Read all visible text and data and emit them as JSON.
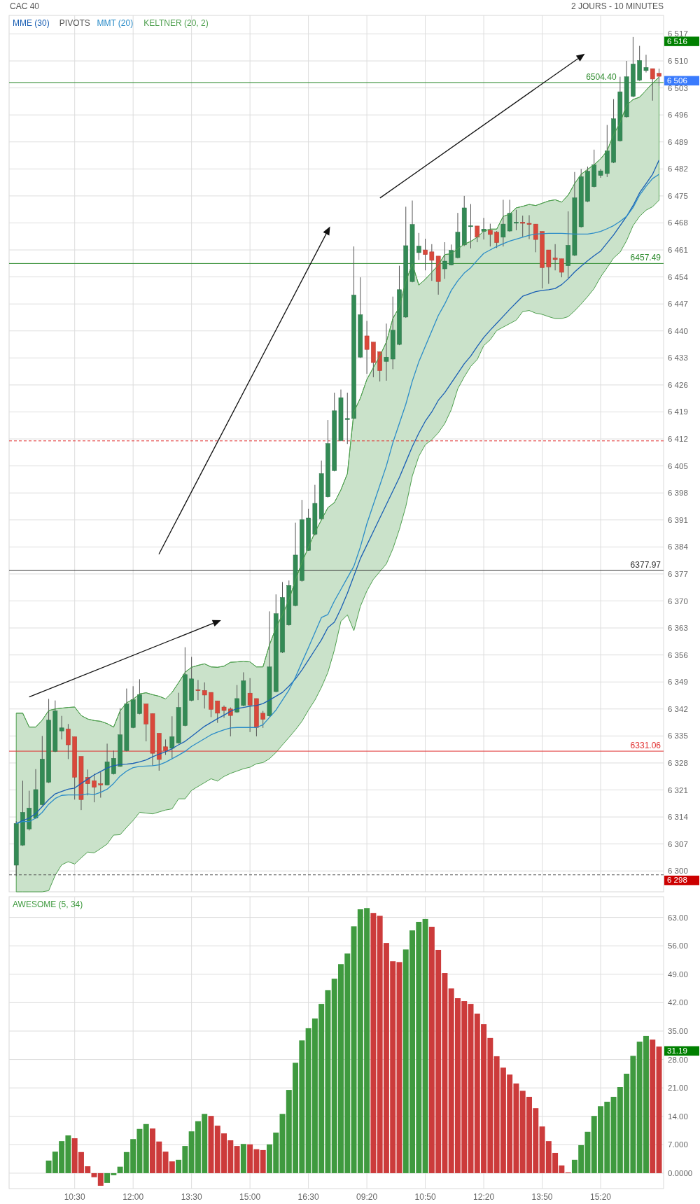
{
  "chart_data": [
    {
      "type": "candlestick",
      "title": "CAC 40",
      "subtitle": "2 JOURS - 10 MINUTES",
      "categories": [
        null,
        null,
        null,
        null,
        null,
        null,
        null,
        null,
        null,
        null,
        null,
        null,
        null,
        null,
        null,
        null,
        null,
        null,
        null,
        null,
        null,
        null,
        null,
        null,
        null,
        null,
        null,
        null,
        null,
        null,
        null,
        null,
        null,
        null,
        null,
        null,
        null,
        null,
        null,
        null,
        null,
        null,
        null,
        null,
        null,
        null,
        null,
        null,
        null,
        null,
        null,
        null,
        null,
        null,
        null,
        null,
        null,
        null,
        null,
        null,
        null,
        null,
        null,
        null,
        null,
        null,
        null,
        null,
        null,
        null,
        null,
        null,
        null,
        null,
        null,
        null,
        null,
        null,
        null,
        null,
        null,
        null,
        null,
        null,
        null,
        null,
        null,
        null,
        null,
        null,
        null,
        null,
        null,
        null,
        null,
        null,
        null,
        null,
        null,
        null
      ],
      "ohlc": [
        [
          6301.5,
          6312.9,
          6298.7,
          6312.3
        ],
        [
          6306.7,
          6323.4,
          6306.5,
          6315.2
        ],
        [
          6310.9,
          6320.8,
          6310.5,
          6316.3
        ],
        [
          6313.7,
          6326.4,
          6313.5,
          6321.1
        ],
        [
          6317.2,
          6335.0,
          6317.0,
          6329.0
        ],
        [
          6323.0,
          6344.6,
          6322.8,
          6339.1
        ],
        [
          6331.0,
          6344.2,
          6330.8,
          6341.5
        ],
        [
          6336.3,
          6340.2,
          6334.1,
          6337.1
        ],
        [
          6336.8,
          6338.1,
          6329.0,
          6332.7
        ],
        [
          6334.8,
          6334.8,
          6318.5,
          6324.3
        ],
        [
          6329.7,
          6329.7,
          6315.8,
          6318.5
        ],
        [
          6324.3,
          6326.3,
          6319.6,
          6322.6
        ],
        [
          6323.4,
          6325.2,
          6317.8,
          6321.7
        ],
        [
          6322.6,
          6325.7,
          6319.0,
          6322.3
        ],
        [
          6322.3,
          6333.0,
          6322.2,
          6328.3
        ],
        [
          6325.2,
          6331.2,
          6325.0,
          6329.2
        ],
        [
          6327.1,
          6342.2,
          6327.0,
          6335.3
        ],
        [
          6331.2,
          6347.3,
          6331.0,
          6343.3
        ],
        [
          6337.2,
          6347.9,
          6337.0,
          6344.4
        ],
        [
          6340.8,
          6349.7,
          6340.6,
          6345.7
        ],
        [
          6343.3,
          6343.3,
          6333.6,
          6338.1
        ],
        [
          6340.8,
          6340.8,
          6327.3,
          6330.5
        ],
        [
          6335.7,
          6335.7,
          6326.0,
          6328.9
        ],
        [
          6332.2,
          6334.1,
          6330.1,
          6331.2
        ],
        [
          6331.8,
          6340.1,
          6329.2,
          6334.8
        ],
        [
          6333.2,
          6346.2,
          6333.0,
          6342.4
        ],
        [
          6337.7,
          6358.0,
          6337.5,
          6350.9
        ],
        [
          6344.2,
          6355.5,
          6344.0,
          6349.8
        ],
        [
          6347.0,
          6349.5,
          6344.3,
          6346.8
        ],
        [
          6346.8,
          6348.9,
          6342.1,
          6345.6
        ],
        [
          6346.3,
          6346.3,
          6339.9,
          6341.9
        ],
        [
          6344.1,
          6344.1,
          6338.4,
          6340.9
        ],
        [
          6342.5,
          6342.9,
          6339.7,
          6341.6
        ],
        [
          6342.0,
          6342.4,
          6334.9,
          6340.3
        ],
        [
          6341.2,
          6348.2,
          6341.0,
          6344.7
        ],
        [
          6342.9,
          6351.5,
          6342.7,
          6349.3
        ],
        [
          6346.1,
          6350.0,
          6336.0,
          6343.0
        ],
        [
          6344.7,
          6344.7,
          6334.9,
          6337.2
        ],
        [
          6340.9,
          6341.5,
          6337.1,
          6339.3
        ],
        [
          6340.2,
          6367.3,
          6340.0,
          6352.9
        ],
        [
          6346.5,
          6371.7,
          6346.3,
          6366.7
        ],
        [
          6356.7,
          6374.9,
          6356.5,
          6370.9
        ],
        [
          6363.8,
          6375.3,
          6363.6,
          6374.0
        ],
        [
          6368.8,
          6390.3,
          6368.6,
          6381.9
        ],
        [
          6375.3,
          6396.2,
          6375.0,
          6391.1
        ],
        [
          6383.1,
          6393.9,
          6383.0,
          6391.5
        ],
        [
          6387.3,
          6400.1,
          6387.0,
          6395.3
        ],
        [
          6391.3,
          6406.4,
          6391.0,
          6403.0
        ],
        [
          6397.0,
          6416.9,
          6396.8,
          6410.8
        ],
        [
          6403.8,
          6424.0,
          6403.6,
          6419.3
        ],
        [
          6411.6,
          6424.8,
          6411.4,
          6422.7
        ],
        [
          6417.2,
          6424.0,
          6410.7,
          6417.3
        ],
        [
          6417.3,
          6461.9,
          6417.2,
          6449.3
        ],
        [
          6433.2,
          6453.9,
          6433.0,
          6444.2
        ],
        [
          6438.7,
          6442.6,
          6428.9,
          6435.2
        ],
        [
          6437.1,
          6437.1,
          6428.0,
          6431.8
        ],
        [
          6434.6,
          6434.6,
          6426.9,
          6429.7
        ],
        [
          6432.1,
          6441.9,
          6427.1,
          6433.2
        ],
        [
          6432.7,
          6448.9,
          6430.1,
          6440.2
        ],
        [
          6436.5,
          6456.9,
          6436.3,
          6450.7
        ],
        [
          6443.6,
          6472.2,
          6443.4,
          6462.1
        ],
        [
          6452.8,
          6473.8,
          6452.6,
          6467.6
        ],
        [
          6460.3,
          6465.4,
          6458.4,
          6462.0
        ],
        [
          6461.0,
          6463.9,
          6455.7,
          6459.8
        ],
        [
          6460.5,
          6462.5,
          6453.0,
          6458.3
        ],
        [
          6459.4,
          6459.4,
          6449.4,
          6452.8
        ],
        [
          6456.1,
          6463.0,
          6453.5,
          6458.1
        ],
        [
          6457.1,
          6462.4,
          6457.0,
          6460.9
        ],
        [
          6459.0,
          6470.6,
          6458.8,
          6465.6
        ],
        [
          6462.3,
          6475.0,
          6462.0,
          6471.9
        ],
        [
          6467.2,
          6472.9,
          6461.4,
          6467.3
        ],
        [
          6467.2,
          6467.2,
          6463.0,
          6464.3
        ],
        [
          6465.8,
          6469.3,
          6463.7,
          6466.4
        ],
        [
          6466.1,
          6467.8,
          6461.9,
          6465.0
        ],
        [
          6465.6,
          6465.9,
          6461.5,
          6462.9
        ],
        [
          6464.3,
          6474.0,
          6461.9,
          6467.7
        ],
        [
          6465.9,
          6474.0,
          6465.7,
          6470.5
        ],
        [
          6468.1,
          6471.4,
          6466.1,
          6468.2
        ],
        [
          6468.2,
          6469.9,
          6464.4,
          6467.9
        ],
        [
          6467.9,
          6470.0,
          6463.8,
          6467.6
        ],
        [
          6467.7,
          6467.7,
          6460.4,
          6463.7
        ],
        [
          6465.8,
          6465.8,
          6451.0,
          6456.4
        ],
        [
          6461.0,
          6461.0,
          6452.2,
          6456.6
        ],
        [
          6458.9,
          6462.5,
          6455.7,
          6458.5
        ],
        [
          6458.7,
          6458.7,
          6453.9,
          6455.2
        ],
        [
          6456.9,
          6471.0,
          6453.7,
          6462.2
        ],
        [
          6459.6,
          6481.2,
          6459.4,
          6474.5
        ],
        [
          6467.0,
          6482.0,
          6466.8,
          6480.0
        ],
        [
          6473.6,
          6482.6,
          6473.4,
          6481.4
        ],
        [
          6477.4,
          6487.0,
          6477.2,
          6483.1
        ],
        [
          6480.3,
          6482.0,
          6479.7,
          6481.5
        ],
        [
          6480.8,
          6493.4,
          6479.9,
          6486.7
        ],
        [
          6483.7,
          6500.1,
          6483.5,
          6495.0
        ],
        [
          6489.3,
          6505.9,
          6489.1,
          6502.0
        ],
        [
          6495.5,
          6510.0,
          6495.3,
          6505.9
        ],
        [
          6500.8,
          6516.2,
          6500.6,
          6509.2
        ],
        [
          6505.0,
          6513.9,
          6504.8,
          6510.1
        ],
        [
          6507.5,
          6511.6,
          6507.0,
          6508.3
        ],
        [
          6508.0,
          6508.0,
          6499.7,
          6505.3
        ],
        [
          6506.8,
          6508.0,
          6503.5,
          6506.0
        ]
      ],
      "series": [
        {
          "name": "MME (30)",
          "type": "line",
          "color": "#1a5fb4",
          "values": [
            6312.3,
            6313.1,
            6313.7,
            6314.9,
            6316.7,
            6318.5,
            6320.0,
            6320.6,
            6321.2,
            6321.5,
            6322.7,
            6323.8,
            6324.9,
            6325.8,
            6326.7,
            6327.3,
            6327.6,
            6327.7,
            6327.9,
            6328.3,
            6328.8,
            6329.6,
            6330.3,
            6330.9,
            6331.7,
            6332.7,
            6333.6,
            6334.9,
            6336.2,
            6337.5,
            6338.5,
            6339.5,
            6340.4,
            6341.4,
            6342.1,
            6342.4,
            6342.7,
            6342.9,
            6343.4,
            6344.3,
            6345.3,
            6346.3,
            6347.9,
            6349.8,
            6352.1,
            6354.7,
            6357.3,
            6359.9,
            6363.1,
            6364.5,
            6368.0,
            6372.0,
            6376.5,
            6381.0,
            6384.5,
            6388.0,
            6391.5,
            6395.0,
            6398.5,
            6402.0,
            6406.0,
            6410.0,
            6413.5,
            6416.6,
            6419.0,
            6422.0,
            6424.0,
            6426.5,
            6429.0,
            6431.5,
            6433.5,
            6436.0,
            6438.3,
            6440.2,
            6442.0,
            6443.8,
            6445.6,
            6447.3,
            6449.0,
            6449.6,
            6450.2,
            6450.5,
            6450.7,
            6451.0,
            6452.0,
            6453.5,
            6455.3,
            6456.8,
            6458.2,
            6459.5,
            6460.7,
            6462.8,
            6464.9,
            6467.3,
            6469.7,
            6472.5,
            6475.8,
            6478.2,
            6480.6,
            6484.3
          ]
        },
        {
          "name": "MMT (20)",
          "type": "line",
          "color": "#2b8cc8",
          "values": [
            6312.3,
            6312.8,
            6312.8,
            6313.7,
            6315.2,
            6317.3,
            6318.8,
            6319.6,
            6319.7,
            6319.7,
            6319.7,
            6320.0,
            6319.8,
            6320.4,
            6321.2,
            6322.7,
            6324.6,
            6325.9,
            6326.8,
            6327.1,
            6327.2,
            6327.3,
            6327.5,
            6328.2,
            6329.1,
            6330.0,
            6331.0,
            6332.3,
            6333.3,
            6334.3,
            6335.3,
            6336.0,
            6336.6,
            6337.1,
            6337.2,
            6337.2,
            6337.2,
            6337.2,
            6337.9,
            6339.8,
            6341.7,
            6344.3,
            6346.9,
            6350.2,
            6354.1,
            6357.9,
            6361.8,
            6365.7,
            6366.5,
            6370.0,
            6373.0,
            6376.0,
            6379.0,
            6384.0,
            6390.0,
            6395.0,
            6400.0,
            6405.0,
            6411.0,
            6416.0,
            6421.0,
            6427.0,
            6432.0,
            6436.0,
            6440.0,
            6444.0,
            6447.0,
            6450.5,
            6453.0,
            6455.0,
            6456.4,
            6458.3,
            6460.1,
            6461.0,
            6461.9,
            6462.6,
            6463.3,
            6463.8,
            6464.3,
            6464.8,
            6465.1,
            6465.2,
            6465.3,
            6465.3,
            6465.3,
            6465.2,
            6465.1,
            6465.1,
            6465.1,
            6465.4,
            6465.8,
            6466.5,
            6467.3,
            6468.4,
            6469.7,
            6472.0,
            6475.2,
            6477.5,
            6479.5,
            6480.6
          ]
        },
        {
          "name": "KELTNER (20, 2)",
          "type": "line",
          "color": "#4e9f4e",
          "values": [
            6340.9,
            6340.9,
            6337.3,
            6337.3,
            6339.1,
            6341.6,
            6342.0,
            6342.2,
            6342.4,
            6342.5,
            6340.3,
            6339.4,
            6339.0,
            6338.8,
            6338.2,
            6337.3,
            6341.5,
            6343.6,
            6344.5,
            6345.9,
            6346.2,
            6345.7,
            6345.3,
            6344.6,
            6346.3,
            6348.8,
            6351.5,
            6352.8,
            6353.3,
            6353.7,
            6352.9,
            6352.8,
            6353.1,
            6354.1,
            6354.2,
            6354.4,
            6354.2,
            6352.9,
            6352.9,
            6358.6,
            6363.1,
            6366.4,
            6370.3,
            6375.4,
            6380.0,
            6383.9,
            6387.8,
            6391.0,
            6394.2,
            6395.5,
            6398.8,
            6403.0,
            6419.0,
            6422.6,
            6427.4,
            6430.5,
            6433.5,
            6437.1,
            6443.2,
            6446.2,
            6452.8,
            6457.4,
            6451.9,
            6453.4,
            6455.2,
            6457.1,
            6459.8,
            6460.0,
            6461.3,
            6462.5,
            6463.2,
            6464.3,
            6465.9,
            6466.4,
            6466.4,
            6469.7,
            6470.3,
            6471.9,
            6472.3,
            6472.8,
            6472.5,
            6473.1,
            6473.7,
            6474.0,
            6473.4,
            6475.2,
            6478.2,
            6480.6,
            6481.9,
            6483.1,
            6484.6,
            6486.7,
            6490.9,
            6494.0,
            6498.5,
            6500.0,
            6500.6,
            6502.4,
            6504.2,
            6505.8
          ],
          "upper": [
            6340.9,
            6340.9,
            6337.3,
            6337.3,
            6339.1,
            6341.6,
            6342.0,
            6342.2,
            6342.4,
            6342.5,
            6340.3,
            6339.4,
            6339.0,
            6338.8,
            6338.2,
            6337.3,
            6341.5,
            6343.6,
            6344.5,
            6345.9,
            6346.2,
            6345.7,
            6345.3,
            6344.6,
            6346.3,
            6348.8,
            6351.5,
            6352.8,
            6353.3,
            6353.7,
            6352.9,
            6352.8,
            6353.1,
            6354.1,
            6354.2,
            6354.4,
            6354.2,
            6352.9,
            6352.9,
            6358.6,
            6363.1,
            6366.4,
            6370.3,
            6375.4,
            6380.0,
            6383.9,
            6387.8,
            6391.0,
            6394.2,
            6395.5,
            6398.8,
            6403.0,
            6419.0,
            6422.6,
            6427.4,
            6430.5,
            6433.5,
            6437.1,
            6443.2,
            6446.2,
            6452.8,
            6457.4,
            6451.9,
            6453.4,
            6455.2,
            6457.1,
            6459.8,
            6460.0,
            6461.3,
            6462.5,
            6463.2,
            6464.3,
            6465.9,
            6466.4,
            6466.4,
            6469.7,
            6470.3,
            6471.9,
            6472.3,
            6472.8,
            6472.5,
            6473.1,
            6473.7,
            6474.0,
            6473.4,
            6475.2,
            6478.2,
            6480.6,
            6481.9,
            6483.1,
            6484.6,
            6486.7,
            6490.9,
            6494.0,
            6498.5,
            6500.0,
            6500.6,
            6502.4,
            6504.2,
            6505.8
          ],
          "lower": [
            6294.6,
            6294.6,
            6294.6,
            6294.6,
            6294.6,
            6294.9,
            6298.9,
            6301.6,
            6302.4,
            6301.8,
            6303.4,
            6304.9,
            6304.7,
            6305.8,
            6307.0,
            6309.3,
            6309.4,
            6311.3,
            6313.1,
            6315.2,
            6315.0,
            6314.8,
            6315.3,
            6315.8,
            6316.1,
            6318.7,
            6318.7,
            6320.9,
            6321.9,
            6322.9,
            6323.9,
            6323.3,
            6324.5,
            6325.3,
            6325.9,
            6326.5,
            6326.9,
            6327.8,
            6328.1,
            6329.1,
            6330.7,
            6332.7,
            6334.6,
            6336.6,
            6338.8,
            6341.7,
            6344.3,
            6347.6,
            6351.5,
            6357.3,
            6364.7,
            6366.4,
            6362.3,
            6368.6,
            6372.6,
            6375.6,
            6377.6,
            6379.6,
            6383.5,
            6388.5,
            6394.5,
            6402.4,
            6407.5,
            6410.5,
            6411.8,
            6413.6,
            6416.0,
            6419.6,
            6425.0,
            6428.1,
            6430.8,
            6432.6,
            6436.2,
            6437.7,
            6440.1,
            6441.0,
            6441.9,
            6442.8,
            6445.0,
            6445.3,
            6444.6,
            6444.3,
            6443.7,
            6443.2,
            6443.2,
            6443.7,
            6445.2,
            6447.0,
            6448.9,
            6451.0,
            6454.0,
            6456.4,
            6458.9,
            6460.4,
            6463.4,
            6467.3,
            6469.7,
            6471.3,
            6472.2,
            6473.9
          ]
        }
      ],
      "ylim": [
        6294.6,
        6521.8
      ],
      "yticks": [
        {
          "value": 6300,
          "label": "6 300"
        },
        {
          "value": 6307,
          "label": "6 307"
        },
        {
          "value": 6314,
          "label": "6 314"
        },
        {
          "value": 6321,
          "label": "6 321"
        },
        {
          "value": 6328,
          "label": "6 328"
        },
        {
          "value": 6335,
          "label": "6 335"
        },
        {
          "value": 6342,
          "label": "6 342"
        },
        {
          "value": 6349,
          "label": "6 349"
        },
        {
          "value": 6356,
          "label": "6 356"
        },
        {
          "value": 6363,
          "label": "6 363"
        },
        {
          "value": 6370,
          "label": "6 370"
        },
        {
          "value": 6377,
          "label": "6 377"
        },
        {
          "value": 6384,
          "label": "6 384"
        },
        {
          "value": 6391,
          "label": "6 391"
        },
        {
          "value": 6398,
          "label": "6 398"
        },
        {
          "value": 6405,
          "label": "6 405"
        },
        {
          "value": 6412,
          "label": "6 412"
        },
        {
          "value": 6419,
          "label": "6 419"
        },
        {
          "value": 6426,
          "label": "6 426"
        },
        {
          "value": 6433,
          "label": "6 433"
        },
        {
          "value": 6440,
          "label": "6 440"
        },
        {
          "value": 6447,
          "label": "6 447"
        },
        {
          "value": 6454,
          "label": "6 454"
        },
        {
          "value": 6461,
          "label": "6 461"
        },
        {
          "value": 6468,
          "label": "6 468"
        },
        {
          "value": 6475,
          "label": "6 475"
        },
        {
          "value": 6482,
          "label": "6 482"
        },
        {
          "value": 6489,
          "label": "6 489"
        },
        {
          "value": 6496,
          "label": "6 496"
        },
        {
          "value": 6503,
          "label": "6 503"
        },
        {
          "value": 6510,
          "label": "6 510"
        },
        {
          "value": 6517,
          "label": "6 517"
        }
      ],
      "ref_lines": [
        {
          "axis": "y",
          "value": 6504.4,
          "label": "6504.40",
          "color": "#2e8b2e"
        },
        {
          "axis": "y",
          "value": 6457.49,
          "label": "6457.49",
          "color": "#2e8b2e"
        },
        {
          "axis": "y",
          "value": 6377.97,
          "label": "6377.97",
          "color": "#333333"
        },
        {
          "axis": "y",
          "value": 6331.06,
          "label": "6331.06",
          "color": "#e03030"
        },
        {
          "axis": "y",
          "value": 6411.5,
          "color": "#e03030",
          "line_style": "dashed"
        },
        {
          "axis": "y",
          "value": 6299,
          "color": "#555555",
          "line_style": "dashed"
        }
      ],
      "legend_title": "PIVOTS",
      "annotations": [
        "6 516",
        "6 506",
        "6 298"
      ],
      "grid": true,
      "legend": "top left",
      "tick_labels": "y"
    },
    {
      "type": "bar",
      "categories": [
        null,
        null,
        null,
        null,
        null,
        null,
        null,
        null,
        null,
        "10:30",
        null,
        null,
        null,
        null,
        null,
        null,
        null,
        null,
        "12:00",
        null,
        null,
        null,
        null,
        null,
        null,
        null,
        null,
        "13:30",
        null,
        null,
        null,
        null,
        null,
        null,
        null,
        null,
        "15:00",
        null,
        null,
        null,
        null,
        null,
        null,
        null,
        null,
        "16:30",
        null,
        null,
        null,
        null,
        null,
        null,
        null,
        null,
        "09:20",
        null,
        null,
        null,
        null,
        null,
        null,
        null,
        null,
        "10:50",
        null,
        null,
        null,
        null,
        null,
        null,
        null,
        null,
        "12:20",
        null,
        null,
        null,
        null,
        null,
        null,
        null,
        null,
        "13:50",
        null,
        null,
        null,
        null,
        null,
        null,
        null,
        null,
        "15:20",
        null,
        null,
        null,
        null,
        null,
        null,
        null,
        null,
        null
      ],
      "series": [
        {
          "name": "AWESOME (5, 34)",
          "color": "#3f9a3f",
          "values": [
            null,
            null,
            null,
            null,
            null,
            3.1,
            5.3,
            7.9,
            9.3,
            8.6,
            5.2,
            1.7,
            -1.0,
            -3.1,
            -2.4,
            -0.5,
            1.6,
            5.2,
            8.4,
            10.9,
            12.1,
            11.0,
            7.8,
            5.3,
            2.9,
            3.3,
            6.7,
            10.3,
            12.8,
            14.6,
            14.1,
            11.7,
            9.8,
            8.1,
            6.7,
            7.2,
            7.1,
            5.9,
            5.7,
            7.1,
            10.0,
            14.6,
            20.5,
            27.2,
            32.7,
            35.7,
            38.1,
            41.7,
            45.1,
            47.9,
            51.5,
            54.1,
            60.8,
            65.0,
            65.3,
            64.1,
            63.4,
            56.7,
            52.2,
            52.0,
            55.1,
            59.8,
            61.9,
            62.6,
            60.7,
            55.0,
            49.3,
            45.5,
            43.1,
            42.4,
            41.7,
            39.3,
            36.7,
            33.3,
            28.8,
            26.0,
            24.3,
            22.1,
            20.3,
            18.8,
            16.0,
            11.5,
            7.9,
            5.0,
            1.9,
            0.2,
            3.3,
            6.9,
            10.2,
            14.1,
            16.5,
            17.6,
            18.8,
            21.2,
            24.5,
            28.9,
            32.4,
            33.8,
            32.9,
            31.19
          ],
          "colors": [
            null,
            null,
            null,
            null,
            null,
            "#3f9a3f",
            "#3f9a3f",
            "#3f9a3f",
            "#3f9a3f",
            "#cc3b3b",
            "#cc3b3b",
            "#cc3b3b",
            "#cc3b3b",
            "#cc3b3b",
            "#3f9a3f",
            "#3f9a3f",
            "#3f9a3f",
            "#3f9a3f",
            "#3f9a3f",
            "#3f9a3f",
            "#3f9a3f",
            "#cc3b3b",
            "#cc3b3b",
            "#cc3b3b",
            "#cc3b3b",
            "#3f9a3f",
            "#3f9a3f",
            "#3f9a3f",
            "#3f9a3f",
            "#3f9a3f",
            "#cc3b3b",
            "#cc3b3b",
            "#cc3b3b",
            "#cc3b3b",
            "#cc3b3b",
            "#3f9a3f",
            "#cc3b3b",
            "#cc3b3b",
            "#cc3b3b",
            "#3f9a3f",
            "#3f9a3f",
            "#3f9a3f",
            "#3f9a3f",
            "#3f9a3f",
            "#3f9a3f",
            "#3f9a3f",
            "#3f9a3f",
            "#3f9a3f",
            "#3f9a3f",
            "#3f9a3f",
            "#3f9a3f",
            "#3f9a3f",
            "#3f9a3f",
            "#3f9a3f",
            "#3f9a3f",
            "#cc3b3b",
            "#cc3b3b",
            "#cc3b3b",
            "#cc3b3b",
            "#cc3b3b",
            "#3f9a3f",
            "#3f9a3f",
            "#3f9a3f",
            "#3f9a3f",
            "#cc3b3b",
            "#cc3b3b",
            "#cc3b3b",
            "#cc3b3b",
            "#cc3b3b",
            "#cc3b3b",
            "#cc3b3b",
            "#cc3b3b",
            "#cc3b3b",
            "#cc3b3b",
            "#cc3b3b",
            "#cc3b3b",
            "#cc3b3b",
            "#cc3b3b",
            "#cc3b3b",
            "#cc3b3b",
            "#cc3b3b",
            "#cc3b3b",
            "#cc3b3b",
            "#cc3b3b",
            "#cc3b3b",
            "#cc3b3b",
            "#3f9a3f",
            "#3f9a3f",
            "#3f9a3f",
            "#3f9a3f",
            "#3f9a3f",
            "#3f9a3f",
            "#3f9a3f",
            "#3f9a3f",
            "#3f9a3f",
            "#3f9a3f",
            "#3f9a3f",
            "#3f9a3f",
            "#cc3b3b",
            "#cc3b3b"
          ]
        }
      ],
      "ylim": [
        -3.8,
        68.1
      ],
      "yticks": [
        {
          "value": 0,
          "label": "0.0000"
        },
        {
          "value": 7,
          "label": "7.000"
        },
        {
          "value": 14,
          "label": "14.00"
        },
        {
          "value": 21,
          "label": "21.00"
        },
        {
          "value": 28,
          "label": "28.00"
        },
        {
          "value": 35,
          "label": "35.00"
        },
        {
          "value": 42,
          "label": "42.00"
        },
        {
          "value": 49,
          "label": "49.00"
        },
        {
          "value": 56,
          "label": "56.00"
        },
        {
          "value": 63,
          "label": "63.00"
        }
      ],
      "annotations": [
        "31.19"
      ],
      "grid": true,
      "legend": "top left"
    }
  ]
}
